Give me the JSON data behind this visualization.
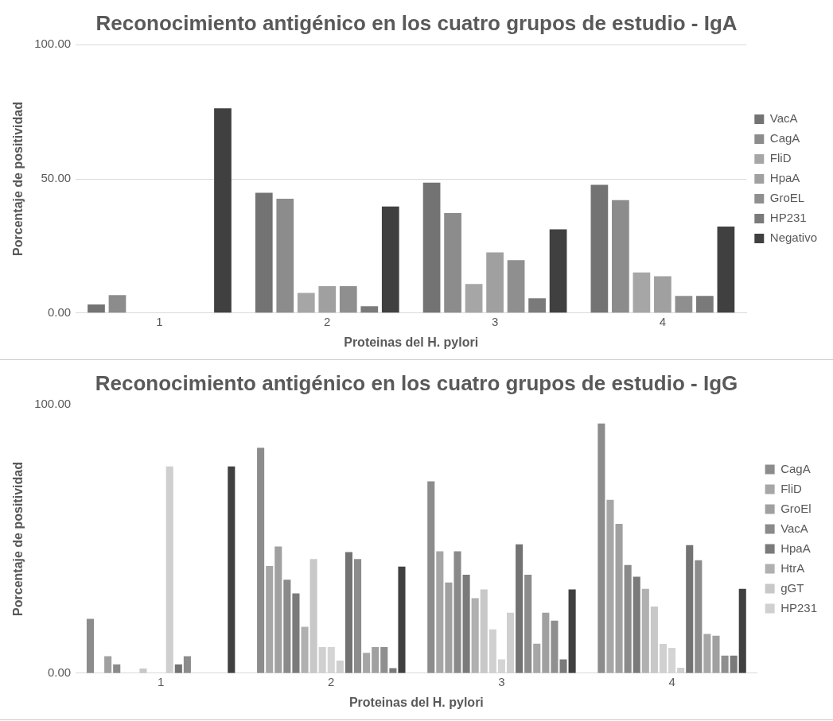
{
  "chart_data": [
    {
      "type": "bar",
      "title": "Reconocimiento antigénico en los cuatro grupos de estudio - IgA",
      "xlabel": "Proteinas del H. pylori",
      "ylabel": "Porcentaje de positividad",
      "categories": [
        "1",
        "2",
        "3",
        "4"
      ],
      "series": [
        {
          "name": "VacA",
          "color": "#737373",
          "values": [
            3.2,
            44.8,
            48.6,
            47.8
          ]
        },
        {
          "name": "CagA",
          "color": "#8c8c8c",
          "values": [
            6.7,
            42.6,
            37.3,
            42.1
          ]
        },
        {
          "name": "FliD",
          "color": "#a6a6a6",
          "values": [
            0,
            7.5,
            10.8,
            15.1
          ]
        },
        {
          "name": "HpaA",
          "color": "#a0a0a0",
          "values": [
            0,
            10,
            22.6,
            13.7
          ]
        },
        {
          "name": "GroEL",
          "color": "#8f8f8f",
          "values": [
            0,
            10,
            19.7,
            6.4
          ]
        },
        {
          "name": "HP231",
          "color": "#7a7a7a",
          "values": [
            0,
            2.5,
            5.5,
            6.4
          ]
        },
        {
          "name": "Negativo",
          "color": "#404040",
          "values": [
            76.3,
            39.7,
            31.2,
            32.2
          ]
        }
      ],
      "ylim": [
        0,
        100
      ],
      "yticks": [
        {
          "value": 0,
          "label": "0.00"
        },
        {
          "value": 50,
          "label": "50.00"
        },
        {
          "value": 100,
          "label": "100.00"
        }
      ],
      "grid": "y",
      "legend": "right"
    },
    {
      "type": "bar",
      "title": "Reconocimiento antigénico en los cuatro grupos de estudio - IgG",
      "xlabel": "Proteinas del H. pylori",
      "ylabel": "Porcentaje de positividad",
      "categories": [
        "1",
        "2",
        "3",
        "4"
      ],
      "series": [
        {
          "name": "CagA",
          "color": "#8c8c8c",
          "values": [
            20.2,
            84,
            71.5,
            93
          ]
        },
        {
          "name": "FliD",
          "color": "#a6a6a6",
          "values": [
            0,
            39.9,
            45.4,
            64.6
          ]
        },
        {
          "name": "GroEl",
          "color": "#a0a0a0",
          "values": [
            6.3,
            47.2,
            33.8,
            55.6
          ]
        },
        {
          "name": "VacA",
          "color": "#8a8a8a",
          "values": [
            3.3,
            34.8,
            45.4,
            40.3
          ]
        },
        {
          "name": "HpaA",
          "color": "#7a7a7a",
          "values": [
            0,
            29.7,
            36.7,
            35.9
          ]
        },
        {
          "name": "HtrA",
          "color": "#b0b0b0",
          "values": [
            0,
            17.3,
            27.9,
            31.4
          ]
        },
        {
          "name": "gGT",
          "color": "#c8c8c8",
          "values": [
            1.7,
            42.5,
            31.2,
            24.8
          ]
        },
        {
          "name": "HP231",
          "color": "#d0d0d0",
          "values": [
            0,
            9.7,
            16.3,
            10.9
          ]
        },
        {
          "color": "#d4d4d4",
          "values": [
            0,
            9.7,
            5.1,
            9.4
          ]
        },
        {
          "color": "#cfcfcf",
          "values": [
            77,
            4.7,
            22.5,
            2
          ]
        },
        {
          "color": "#737373",
          "values": [
            3.3,
            45.1,
            48,
            47.7
          ]
        },
        {
          "color": "#8c8c8c",
          "values": [
            6.3,
            42.5,
            36.7,
            42.1
          ]
        },
        {
          "color": "#a6a6a6",
          "values": [
            0,
            7.6,
            11,
            14.6
          ]
        },
        {
          "color": "#a0a0a0",
          "values": [
            0,
            9.7,
            22.5,
            13.9
          ]
        },
        {
          "color": "#8f8f8f",
          "values": [
            0,
            9.7,
            19.6,
            6.5
          ]
        },
        {
          "color": "#7a7a7a",
          "values": [
            0,
            1.9,
            5.1,
            6.5
          ]
        },
        {
          "color": "#404040",
          "values": [
            77,
            39.7,
            31.2,
            31.4
          ]
        }
      ],
      "ylim": [
        0,
        100
      ],
      "yticks": [
        {
          "value": 0,
          "label": "0.00"
        },
        {
          "value": 100,
          "label": "100.00"
        }
      ],
      "grid": false,
      "legend": "right"
    }
  ]
}
